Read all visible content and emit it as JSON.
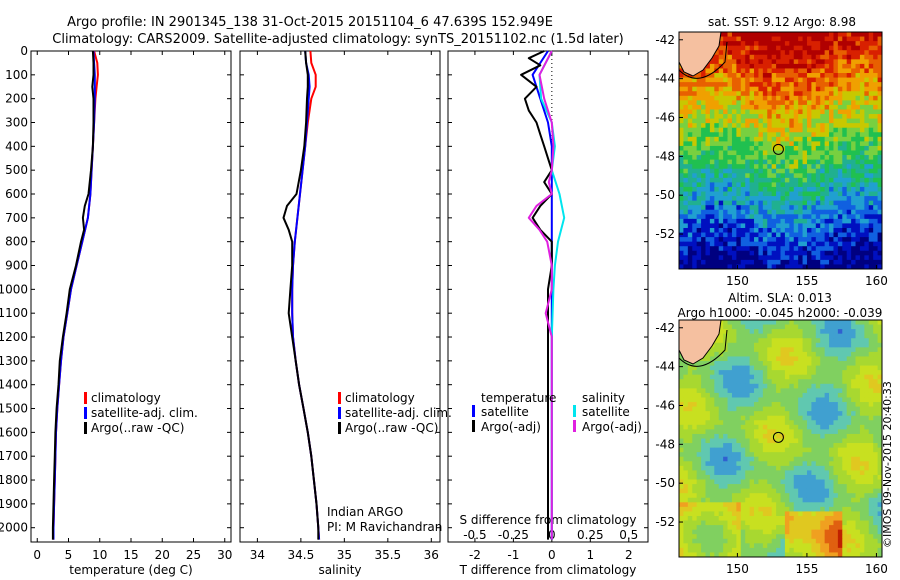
{
  "header": {
    "title_line1": "Argo profile: IN 2901345_138 31-Oct-2015 20151104_6 47.639S 152.949E",
    "title_line2": "Climatology: CARS2009. Satellite-adjusted climatology: synTS_20151102.nc (1.5d later)"
  },
  "colors": {
    "climatology": "#ff0000",
    "satellite": "#0000ff",
    "argo": "#000000",
    "sal_satellite": "#00e5ee",
    "sal_argo": "#e020e0"
  },
  "depth_axis": {
    "ticks": [
      "0",
      "100",
      "200",
      "300",
      "400",
      "500",
      "600",
      "700",
      "800",
      "900",
      "1000",
      "1100",
      "1200",
      "1300",
      "1400",
      "1500",
      "1600",
      "1700",
      "1800",
      "1900",
      "2000"
    ],
    "range": [
      0,
      2060
    ]
  },
  "legend": {
    "climatology": "climatology",
    "satellite_adj": "satellite-adj. clim.",
    "argo_raw": "Argo(..raw -QC)",
    "temperature_head": "temperature",
    "salinity_head": "salinity",
    "satellite": "satellite",
    "argo_adj": "Argo(-adj)"
  },
  "credits": {
    "line1": "Indian ARGO",
    "line2": "PI: M Ravichandran",
    "imos": "©IMOS 09-Nov-2015 20:40:33"
  },
  "maps": {
    "sst_title": "sat. SST: 9.12  Argo: 8.98",
    "sla_title1": "Altim. SLA: 0.013",
    "sla_title2": "Argo h1000: -0.045 h2000: -0.039",
    "y_ticks": [
      "-42",
      "-44",
      "-46",
      "-48",
      "-50",
      "-52"
    ],
    "y_range": [
      -53.8,
      -41.6
    ],
    "x_ticks": [
      "150",
      "155",
      "160"
    ],
    "x_range": [
      145.8,
      160.4
    ],
    "float_position": {
      "lon": 152.949,
      "lat": -47.639
    }
  },
  "chart_data": [
    {
      "type": "line",
      "xlabel": "temperature (deg C)",
      "ylabel": "",
      "xlim": [
        -1,
        31
      ],
      "ylim": [
        2060,
        0
      ],
      "x_ticks": [
        "0",
        "5",
        "10",
        "15",
        "20",
        "25",
        "30"
      ],
      "series": [
        {
          "name": "climatology",
          "depth": [
            0,
            50,
            100,
            150,
            200,
            300,
            400,
            500,
            600,
            700,
            800,
            900,
            1000,
            1100,
            1200,
            1300,
            1400,
            1500,
            1600,
            1700,
            1800,
            1900,
            2000,
            2050
          ],
          "values": [
            9.1,
            9.6,
            9.7,
            9.5,
            9.3,
            9.1,
            8.9,
            8.7,
            8.5,
            8.1,
            7.2,
            6.3,
            5.4,
            4.8,
            4.2,
            3.8,
            3.5,
            3.2,
            3.0,
            2.9,
            2.8,
            2.7,
            2.6,
            2.6
          ]
        },
        {
          "name": "satellite-adj. clim.",
          "depth": [
            0,
            50,
            100,
            150,
            200,
            300,
            400,
            500,
            600,
            700,
            800,
            900,
            1000,
            1100,
            1200,
            1300,
            1400,
            1500,
            1600,
            1700,
            1800,
            1900,
            2000,
            2050
          ],
          "values": [
            9.0,
            9.1,
            9.2,
            9.2,
            9.2,
            9.1,
            8.9,
            8.7,
            8.5,
            8.1,
            7.2,
            6.3,
            5.4,
            4.8,
            4.2,
            3.8,
            3.5,
            3.2,
            3.0,
            2.9,
            2.8,
            2.7,
            2.6,
            2.6
          ]
        },
        {
          "name": "Argo(..raw -QC)",
          "depth": [
            0,
            50,
            100,
            150,
            200,
            300,
            400,
            500,
            600,
            650,
            700,
            750,
            800,
            900,
            1000,
            1100,
            1200,
            1300,
            1400,
            1500,
            1600,
            1700,
            1800,
            1900,
            2000,
            2050
          ],
          "values": [
            8.9,
            9.0,
            9.0,
            8.8,
            9.0,
            9.0,
            8.9,
            8.6,
            8.2,
            7.6,
            7.3,
            7.5,
            7.0,
            6.2,
            5.2,
            4.7,
            4.1,
            3.6,
            3.4,
            3.1,
            2.9,
            2.8,
            2.7,
            2.6,
            2.5,
            2.5
          ]
        }
      ]
    },
    {
      "type": "line",
      "xlabel": "salinity",
      "ylabel": "",
      "xlim": [
        33.8,
        36.1
      ],
      "ylim": [
        2060,
        0
      ],
      "x_ticks": [
        "34",
        "34.5",
        "35",
        "35.5",
        "36"
      ],
      "series": [
        {
          "name": "climatology",
          "depth": [
            0,
            50,
            100,
            150,
            200,
            300,
            400,
            500,
            600,
            700,
            800,
            900,
            1000,
            1100,
            1200,
            1300,
            1400,
            1500,
            1600,
            1700,
            1800,
            1900,
            2000,
            2050
          ],
          "values": [
            34.61,
            34.62,
            34.67,
            34.67,
            34.62,
            34.58,
            34.55,
            34.52,
            34.49,
            34.46,
            34.43,
            34.41,
            34.4,
            34.4,
            34.41,
            34.44,
            34.48,
            34.53,
            34.58,
            34.62,
            34.65,
            34.68,
            34.7,
            34.71
          ]
        },
        {
          "name": "satellite-adj. clim.",
          "depth": [
            0,
            50,
            100,
            150,
            200,
            300,
            400,
            500,
            600,
            700,
            800,
            900,
            1000,
            1100,
            1200,
            1300,
            1400,
            1500,
            1600,
            1700,
            1800,
            1900,
            2000,
            2050
          ],
          "values": [
            34.55,
            34.56,
            34.59,
            34.6,
            34.59,
            34.57,
            34.55,
            34.52,
            34.49,
            34.46,
            34.43,
            34.41,
            34.4,
            34.4,
            34.41,
            34.44,
            34.48,
            34.53,
            34.58,
            34.62,
            34.65,
            34.68,
            34.7,
            34.71
          ]
        },
        {
          "name": "Argo(..raw -QC)",
          "depth": [
            0,
            50,
            100,
            150,
            200,
            300,
            400,
            500,
            600,
            650,
            700,
            750,
            800,
            900,
            1000,
            1100,
            1200,
            1300,
            1400,
            1500,
            1600,
            1700,
            1800,
            1900,
            2000,
            2050
          ],
          "values": [
            34.55,
            34.56,
            34.58,
            34.58,
            34.57,
            34.56,
            34.54,
            34.5,
            34.45,
            34.34,
            34.3,
            34.36,
            34.4,
            34.4,
            34.38,
            34.36,
            34.4,
            34.44,
            34.48,
            34.53,
            34.58,
            34.62,
            34.65,
            34.68,
            34.7,
            34.7
          ]
        }
      ]
    },
    {
      "type": "line",
      "xlabel": "T difference from climatology",
      "ylabel": "",
      "xlim": [
        -2.7,
        2.5
      ],
      "ylim": [
        2060,
        0
      ],
      "x_ticks": [
        "-2",
        "-1",
        "0",
        "1",
        "2"
      ],
      "top_label": "S difference from climatology",
      "top_ticks": [
        "-0.5",
        "-0.25",
        "0",
        "0.25",
        "0.5"
      ],
      "series": [
        {
          "name": "temperature satellite",
          "depth": [
            0,
            100,
            200,
            300,
            400,
            500,
            600,
            700,
            800,
            900,
            1000,
            1200,
            1400,
            1600,
            1800,
            2000,
            2050
          ],
          "values": [
            -0.1,
            -0.5,
            -0.3,
            -0.1,
            0.0,
            0.0,
            0.0,
            0.0,
            0.0,
            0.0,
            0.0,
            0.0,
            0.0,
            0.0,
            0.0,
            0.0,
            0.0
          ]
        },
        {
          "name": "temperature Argo(-adj)",
          "depth": [
            0,
            30,
            60,
            100,
            150,
            200,
            250,
            300,
            350,
            400,
            450,
            500,
            550,
            600,
            650,
            700,
            750,
            800,
            900,
            1000,
            1100,
            1200,
            1300,
            1400,
            1600,
            1800,
            2000,
            2050
          ],
          "values": [
            -0.2,
            -0.6,
            -0.3,
            -0.8,
            -0.4,
            -0.7,
            -0.6,
            -0.4,
            -0.3,
            -0.2,
            -0.1,
            0.0,
            -0.2,
            0.0,
            -0.3,
            -0.5,
            -0.3,
            0.0,
            0.0,
            -0.1,
            -0.1,
            -0.1,
            -0.1,
            -0.1,
            -0.1,
            -0.1,
            -0.1,
            -0.1
          ]
        },
        {
          "name": "salinity satellite",
          "depth": [
            0,
            100,
            200,
            300,
            400,
            500,
            600,
            700,
            800,
            900,
            1000,
            1200,
            1400,
            1600,
            1800,
            2000,
            2050
          ],
          "values": [
            0.0,
            -0.08,
            -0.07,
            0.0,
            0.02,
            0.0,
            0.05,
            0.08,
            0.04,
            0.02,
            0.01,
            0.0,
            0.0,
            0.0,
            0.0,
            0.0,
            0.0
          ]
        },
        {
          "name": "salinity Argo(-adj)",
          "depth": [
            0,
            100,
            200,
            300,
            400,
            500,
            550,
            600,
            650,
            700,
            750,
            800,
            900,
            1000,
            1100,
            1200,
            1400,
            1600,
            1800,
            2000,
            2050
          ],
          "values": [
            0.0,
            -0.08,
            -0.05,
            0.0,
            0.01,
            0.0,
            -0.02,
            0.0,
            -0.1,
            -0.15,
            -0.08,
            -0.03,
            0.0,
            0.0,
            -0.04,
            0.0,
            0.0,
            0.0,
            0.0,
            0.0,
            0.0
          ]
        }
      ]
    }
  ]
}
